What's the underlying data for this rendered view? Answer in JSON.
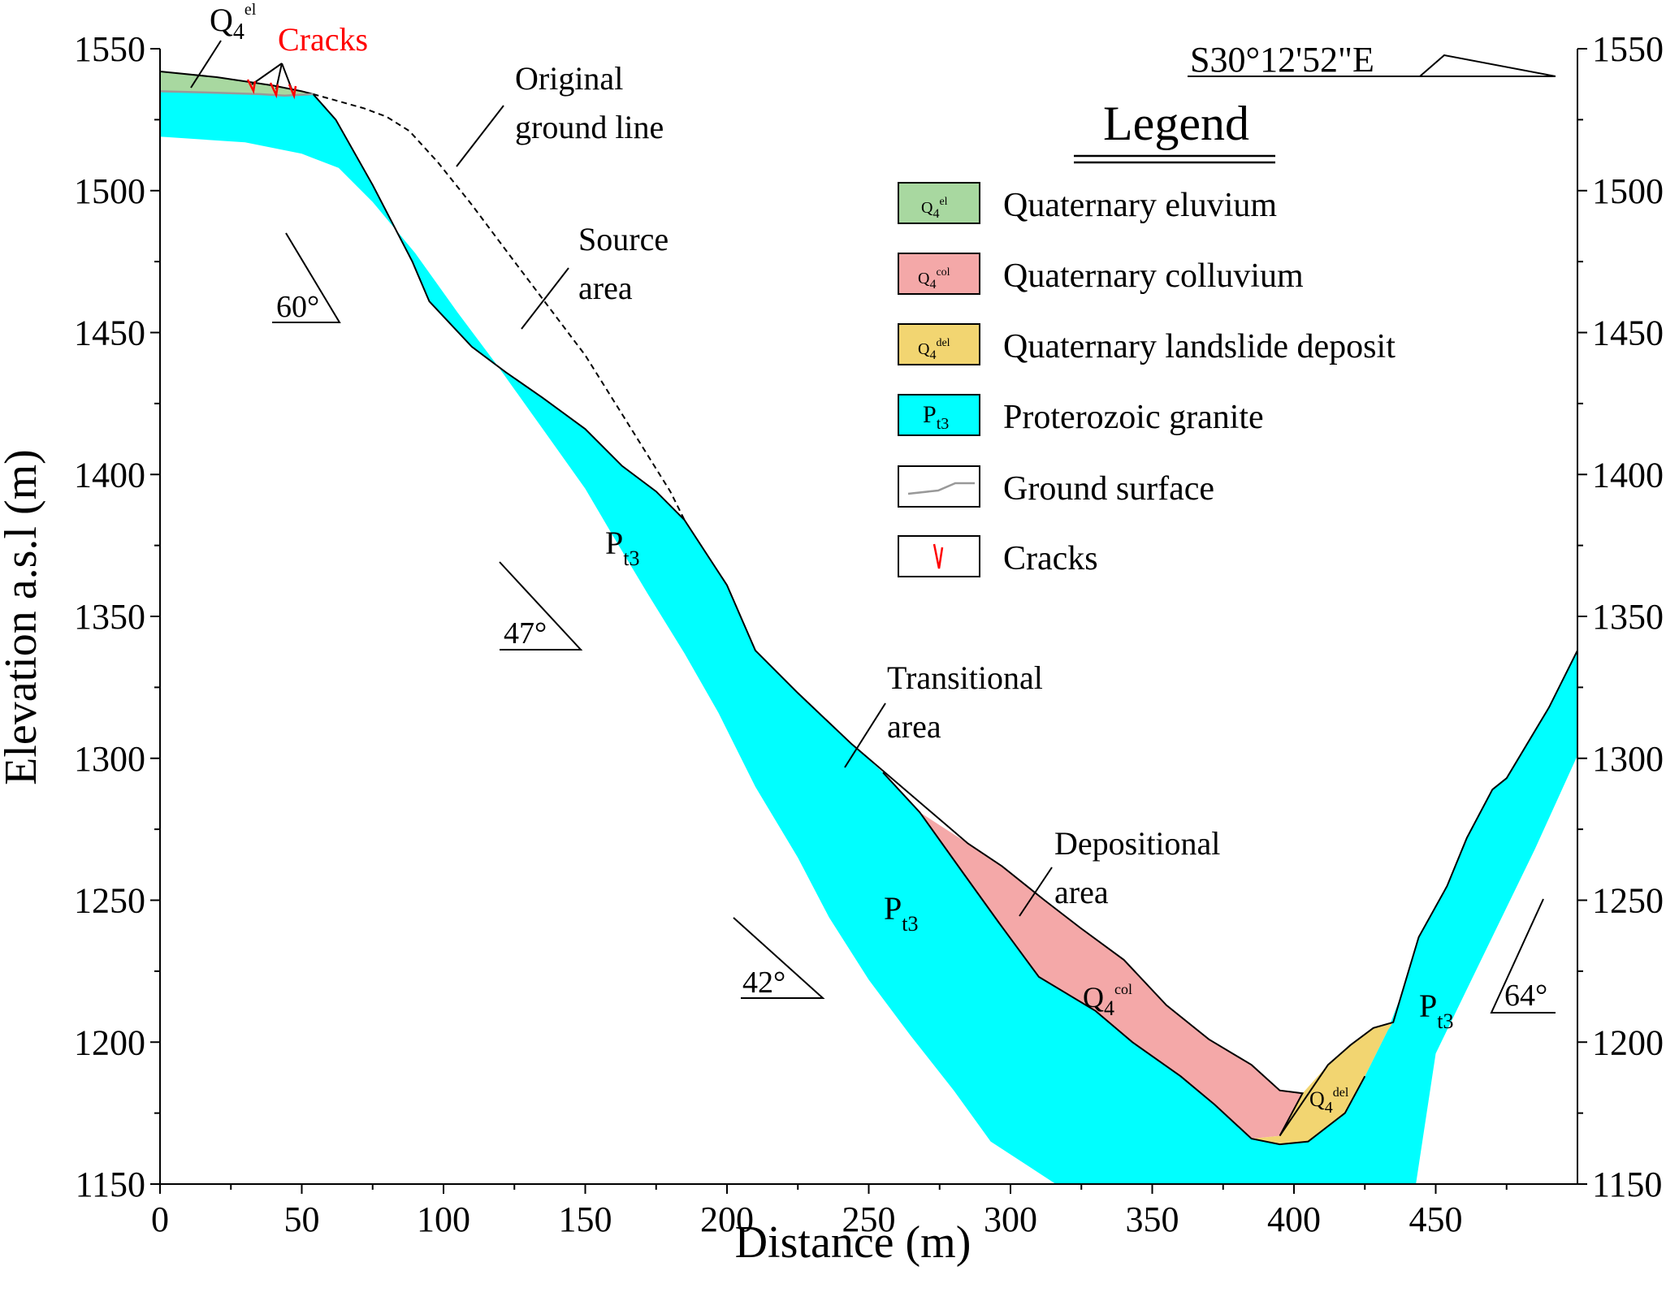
{
  "chart_data": {
    "type": "cross-section",
    "xlabel": "Distance (m)",
    "ylabel": "Elevation a.s.l (m)",
    "xlim": [
      0,
      500
    ],
    "ylim": [
      1150,
      1550
    ],
    "xticks": [
      0,
      50,
      100,
      150,
      200,
      250,
      300,
      350,
      400,
      450
    ],
    "yticks": [
      1150,
      1200,
      1250,
      1300,
      1350,
      1400,
      1450,
      1500,
      1550
    ],
    "bearing": "S30°12'52\"E",
    "layers": [
      {
        "name": "Quaternary eluvium",
        "symbol": "Q4el",
        "color": "#a8d8a0",
        "points": [
          [
            0,
            1542
          ],
          [
            20,
            1540
          ],
          [
            40,
            1537
          ],
          [
            50,
            1535
          ],
          [
            54,
            1534
          ],
          [
            44,
            1533.5
          ],
          [
            35,
            1534
          ],
          [
            20,
            1534.5
          ],
          [
            0,
            1535
          ]
        ]
      },
      {
        "name": "Proterozoic granite",
        "symbol": "Pt3",
        "color": "#00ffff",
        "points": [
          [
            0,
            1535
          ],
          [
            20,
            1534.5
          ],
          [
            35,
            1534
          ],
          [
            44,
            1533.5
          ],
          [
            54,
            1534
          ],
          [
            62,
            1525
          ],
          [
            75,
            1502
          ],
          [
            89,
            1475
          ],
          [
            95,
            1461
          ],
          [
            110,
            1445
          ],
          [
            122,
            1436
          ],
          [
            135,
            1427
          ],
          [
            150,
            1416
          ],
          [
            163,
            1403
          ],
          [
            175,
            1394
          ],
          [
            185,
            1384
          ],
          [
            200,
            1361
          ],
          [
            210,
            1338
          ],
          [
            225,
            1323
          ],
          [
            244,
            1305
          ],
          [
            255,
            1295
          ],
          [
            268,
            1281
          ],
          [
            283,
            1260
          ],
          [
            296,
            1242
          ],
          [
            310,
            1223
          ],
          [
            330,
            1211
          ],
          [
            343,
            1200
          ],
          [
            360,
            1188
          ],
          [
            372,
            1178
          ],
          [
            385,
            1166
          ],
          [
            395,
            1164
          ],
          [
            405,
            1165
          ],
          [
            418,
            1175
          ],
          [
            425,
            1188
          ],
          [
            433,
            1204
          ],
          [
            438,
            1217
          ],
          [
            444,
            1237
          ],
          [
            454,
            1255
          ],
          [
            461,
            1272
          ],
          [
            470,
            1289
          ],
          [
            475,
            1293
          ],
          [
            490,
            1318
          ],
          [
            500,
            1338
          ],
          [
            500,
            1301
          ],
          [
            485,
            1268
          ],
          [
            450,
            1196
          ],
          [
            443,
            1150
          ],
          [
            316,
            1150
          ],
          [
            293,
            1165
          ],
          [
            280,
            1183
          ],
          [
            265,
            1202
          ],
          [
            250,
            1222
          ],
          [
            236,
            1244
          ],
          [
            225,
            1265
          ],
          [
            210,
            1290
          ],
          [
            197,
            1316
          ],
          [
            185,
            1337
          ],
          [
            172,
            1358
          ],
          [
            160,
            1378
          ],
          [
            150,
            1395
          ],
          [
            135,
            1416
          ],
          [
            120,
            1437
          ],
          [
            105,
            1457
          ],
          [
            90,
            1478
          ],
          [
            75,
            1496
          ],
          [
            63,
            1508
          ],
          [
            50,
            1513
          ],
          [
            30,
            1517
          ],
          [
            0,
            1519
          ]
        ]
      },
      {
        "name": "Quaternary colluvium",
        "symbol": "Q4col",
        "color": "#f4a8a8",
        "points": [
          [
            268,
            1281
          ],
          [
            285,
            1270
          ],
          [
            297,
            1262
          ],
          [
            312,
            1250
          ],
          [
            325,
            1240
          ],
          [
            340,
            1229
          ],
          [
            355,
            1213
          ],
          [
            370,
            1201
          ],
          [
            385,
            1192
          ],
          [
            395,
            1183
          ],
          [
            403,
            1182
          ],
          [
            395,
            1167
          ],
          [
            385,
            1166
          ],
          [
            372,
            1178
          ],
          [
            360,
            1188
          ],
          [
            343,
            1200
          ],
          [
            330,
            1211
          ],
          [
            310,
            1223
          ],
          [
            296,
            1242
          ],
          [
            283,
            1260
          ]
        ]
      },
      {
        "name": "Quaternary landslide deposit",
        "symbol": "Q4del",
        "color": "#f2d571",
        "points": [
          [
            403,
            1182
          ],
          [
            412,
            1192
          ],
          [
            420,
            1199
          ],
          [
            428,
            1205
          ],
          [
            435,
            1207
          ],
          [
            433,
            1204
          ],
          [
            425,
            1188
          ],
          [
            418,
            1175
          ],
          [
            405,
            1165
          ],
          [
            395,
            1164
          ],
          [
            385,
            1166
          ],
          [
            395,
            1167
          ]
        ]
      }
    ],
    "original_ground_line": [
      [
        54,
        1534
      ],
      [
        72,
        1529
      ],
      [
        80,
        1526
      ],
      [
        88,
        1521
      ],
      [
        98,
        1510
      ],
      [
        110,
        1495
      ],
      [
        125,
        1475
      ],
      [
        150,
        1442
      ],
      [
        165,
        1418
      ],
      [
        180,
        1394
      ],
      [
        185,
        1384
      ]
    ],
    "slope_angles": [
      "60°",
      "47°",
      "42°",
      "64°"
    ],
    "annotations": [
      {
        "lines": [
          "Original",
          "ground line"
        ]
      },
      {
        "lines": [
          "Source",
          "area"
        ]
      },
      {
        "lines": [
          "Transitional",
          "area"
        ]
      },
      {
        "lines": [
          "Depositional",
          "area"
        ]
      }
    ],
    "crack_label": "Cracks",
    "unit_labels": [
      {
        "base": "P",
        "sub": "t3"
      },
      {
        "base": "P",
        "sub": "t3"
      },
      {
        "base": "P",
        "sub": "t3"
      },
      {
        "base": "Q",
        "sub": "4",
        "sup": "el"
      },
      {
        "base": "Q",
        "sub": "4",
        "sup": "col"
      },
      {
        "base": "Q",
        "sub": "4",
        "sup": "del"
      }
    ],
    "legend": {
      "title": "Legend",
      "position": "top-right",
      "items": [
        {
          "label": "Quaternary eluvium",
          "swatch": "Q4el",
          "color": "#a8d8a0"
        },
        {
          "label": "Quaternary colluvium",
          "swatch": "Q4col",
          "color": "#f4a8a8"
        },
        {
          "label": "Quaternary landslide deposit",
          "swatch": "Q4del",
          "color": "#f2d571"
        },
        {
          "label": "Proterozoic granite",
          "swatch": "Pt3",
          "color": "#00ffff"
        },
        {
          "label": "Ground surface",
          "swatch": "line"
        },
        {
          "label": "Cracks",
          "swatch": "crack"
        }
      ]
    }
  }
}
